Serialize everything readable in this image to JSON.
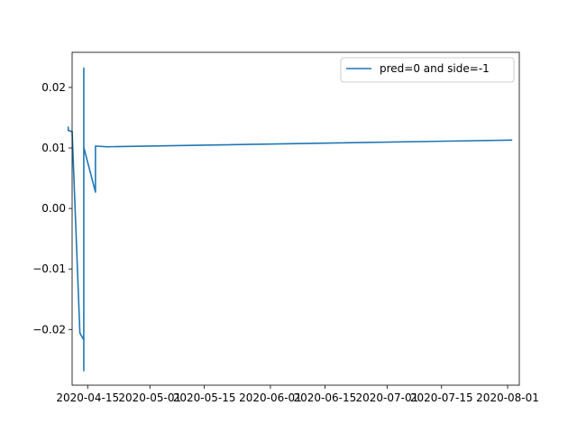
{
  "chart_data": {
    "type": "line",
    "title": "",
    "xlabel": "",
    "ylabel": "",
    "xlim": [
      "2020-04-11",
      "2020-08-04"
    ],
    "ylim": [
      -0.0292,
      0.0258
    ],
    "x_ticks": [
      {
        "label": "2020-04-15",
        "date": "2020-04-15"
      },
      {
        "label": "2020-05-01",
        "date": "2020-05-01"
      },
      {
        "label": "2020-05-15",
        "date": "2020-05-15"
      },
      {
        "label": "2020-06-01",
        "date": "2020-06-01"
      },
      {
        "label": "2020-06-15",
        "date": "2020-06-15"
      },
      {
        "label": "2020-07-01",
        "date": "2020-07-01"
      },
      {
        "label": "2020-07-15",
        "date": "2020-07-15"
      },
      {
        "label": "2020-08-01",
        "date": "2020-08-01"
      }
    ],
    "y_ticks": [
      {
        "label": "0.02",
        "value": 0.02
      },
      {
        "label": "0.01",
        "value": 0.01
      },
      {
        "label": "0.00",
        "value": 0.0
      },
      {
        "label": "−0.01",
        "value": -0.01
      },
      {
        "label": "−0.02",
        "value": -0.02
      }
    ],
    "grid": false,
    "legend_position": "top-right",
    "series": [
      {
        "name": "pred=0 and side=-1",
        "color": "#1f77b4",
        "points": [
          {
            "x": "2020-04-10",
            "y": 0.0134
          },
          {
            "x": "2020-04-10",
            "y": 0.0129
          },
          {
            "x": "2020-04-11",
            "y": 0.0127
          },
          {
            "x": "2020-04-13",
            "y": -0.0206
          },
          {
            "x": "2020-04-14",
            "y": -0.0217
          },
          {
            "x": "2020-04-14",
            "y": -0.0268
          },
          {
            "x": "2020-04-14",
            "y": 0.0232
          },
          {
            "x": "2020-04-14",
            "y": 0.0101
          },
          {
            "x": "2020-04-17",
            "y": 0.0027
          },
          {
            "x": "2020-04-17",
            "y": 0.0103
          },
          {
            "x": "2020-04-20",
            "y": 0.0102
          },
          {
            "x": "2020-08-02",
            "y": 0.0113
          }
        ]
      }
    ]
  }
}
